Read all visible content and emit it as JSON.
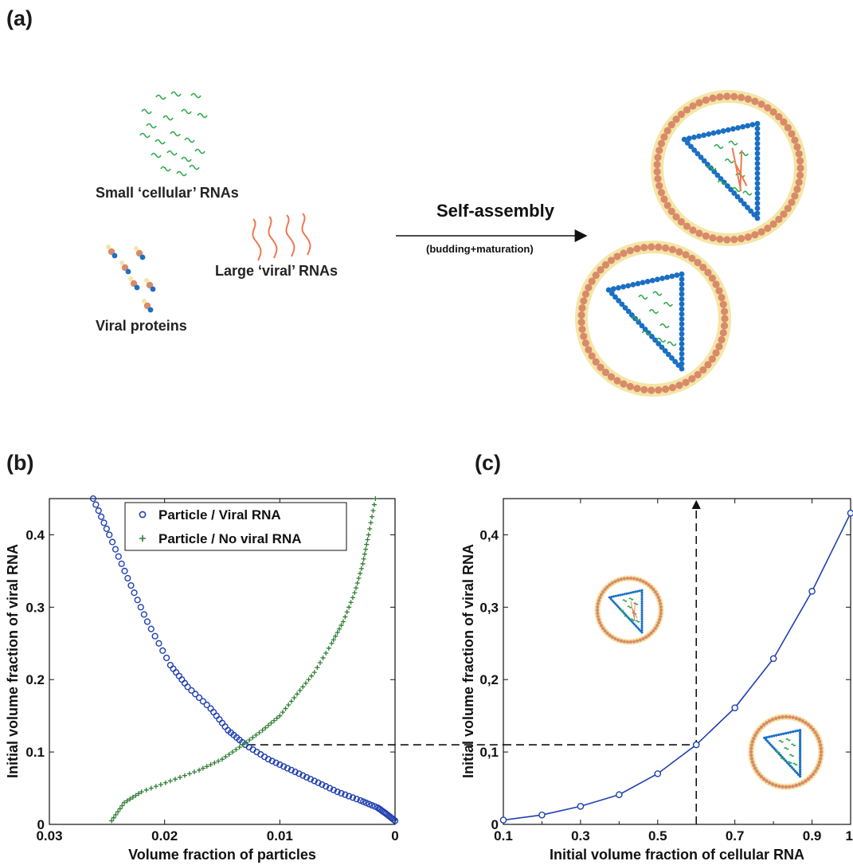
{
  "panels": {
    "a": "(a)",
    "b": "(b)",
    "c": "(c)"
  },
  "diagram": {
    "small_rna_label": "Small ‘cellular’ RNAs",
    "large_rna_label": "Large ‘viral’ RNAs",
    "protein_label": "Viral proteins",
    "arrow_title": "Self-assembly",
    "arrow_subtitle": "(budding+maturation)"
  },
  "colors": {
    "viral_particle_series": "#1f3fb0",
    "no_viral_series": "#2e7d32",
    "capsid": "#1a6fc4",
    "envelope_bead": "#d98a6a",
    "envelope_halo": "#f3e6a6",
    "small_rna": "#2aa84a",
    "large_rna": "#f07850"
  },
  "chart_data": [
    {
      "id": "b",
      "type": "scatter",
      "xlabel": "Volume fraction of particles",
      "ylabel": "Initial volume fraction of viral RNA",
      "xlim": [
        0.03,
        0
      ],
      "ylim": [
        0,
        0.45
      ],
      "x_reversed": true,
      "xticks": [
        "0.03",
        "0.02",
        "0.01",
        "0"
      ],
      "yticks": [
        "0",
        "0.1",
        "0.2",
        "0.3",
        "0.4"
      ],
      "legend_position": "top-right",
      "grid": false,
      "series": [
        {
          "name": "Particle / Viral RNA",
          "marker": "circle",
          "points": [
            [
              0.0262,
              0.45
            ],
            [
              0.0248,
              0.4
            ],
            [
              0.0232,
              0.34
            ],
            [
              0.0215,
              0.28
            ],
            [
              0.0195,
              0.22
            ],
            [
              0.018,
              0.19
            ],
            [
              0.016,
              0.16
            ],
            [
              0.0145,
              0.13
            ],
            [
              0.013,
              0.11
            ],
            [
              0.011,
              0.09
            ],
            [
              0.009,
              0.075
            ],
            [
              0.007,
              0.06
            ],
            [
              0.005,
              0.045
            ],
            [
              0.003,
              0.033
            ],
            [
              0.0015,
              0.023
            ],
            [
              0.0008,
              0.015
            ],
            [
              0.0,
              0.005
            ]
          ]
        },
        {
          "name": "Particle / No viral RNA",
          "marker": "plus",
          "points": [
            [
              0.0246,
              0.005
            ],
            [
              0.0235,
              0.03
            ],
            [
              0.022,
              0.045
            ],
            [
              0.0195,
              0.06
            ],
            [
              0.017,
              0.075
            ],
            [
              0.015,
              0.09
            ],
            [
              0.0132,
              0.11
            ],
            [
              0.0115,
              0.13
            ],
            [
              0.01,
              0.15
            ],
            [
              0.0085,
              0.18
            ],
            [
              0.007,
              0.21
            ],
            [
              0.0055,
              0.25
            ],
            [
              0.0045,
              0.28
            ],
            [
              0.0035,
              0.32
            ],
            [
              0.0028,
              0.36
            ],
            [
              0.0023,
              0.4
            ],
            [
              0.0017,
              0.45
            ]
          ]
        }
      ],
      "guide": {
        "y": 0.11,
        "x": 0.0128
      }
    },
    {
      "id": "c",
      "type": "line",
      "xlabel": "Initial volume fraction of cellular RNA",
      "ylabel": "Initial volume fraction of viral RNA",
      "xlim": [
        0.1,
        1
      ],
      "ylim": [
        0,
        0.45
      ],
      "xticks": [
        "0.1",
        "0.3",
        "0.5",
        "0.7",
        "0.9",
        "1"
      ],
      "yticks": [
        "0",
        "0,1",
        "0,2",
        "0,3",
        "0,4"
      ],
      "grid": false,
      "series": [
        {
          "x": [
            0.1,
            0.2,
            0.3,
            0.4,
            0.5,
            0.6,
            0.7,
            0.8,
            0.9,
            1.0
          ],
          "y": [
            0.006,
            0.013,
            0.025,
            0.041,
            0.07,
            0.11,
            0.161,
            0.229,
            0.322,
            0.43
          ]
        }
      ],
      "guide": {
        "x": 0.6,
        "y": 0.11
      }
    }
  ]
}
